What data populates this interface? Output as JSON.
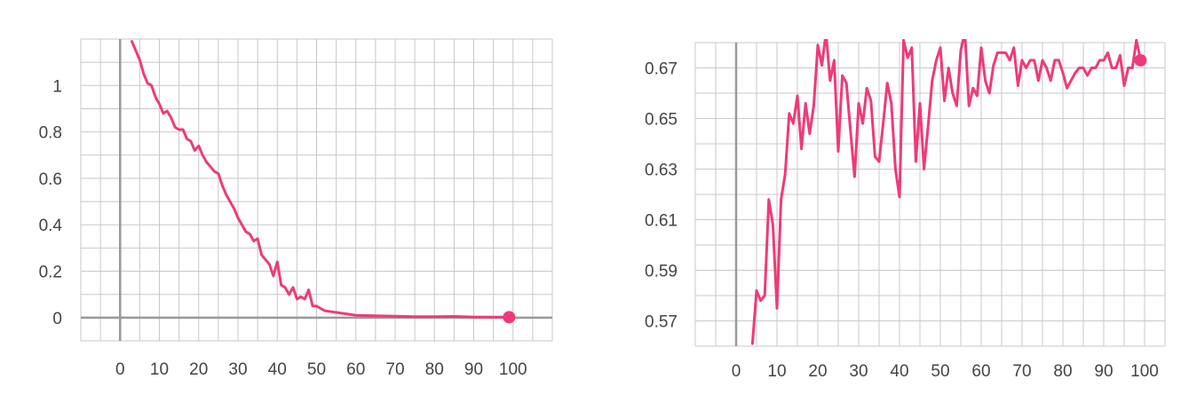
{
  "colors": {
    "series": "#ee3a7b",
    "grid": "#c8c8c8",
    "axis": "#999999",
    "text": "#444444"
  },
  "chart_data": [
    {
      "type": "line",
      "title": "",
      "xlabel": "",
      "ylabel": "",
      "xlim": [
        -10,
        110
      ],
      "ylim": [
        -0.1,
        1.2
      ],
      "grid": true,
      "xticks": [
        0,
        10,
        20,
        30,
        40,
        50,
        60,
        70,
        80,
        90,
        100
      ],
      "xtick_labels": [
        "0",
        "10",
        "20",
        "30",
        "40",
        "50",
        "60",
        "70",
        "80",
        "90",
        "100"
      ],
      "yticks": [
        0,
        0.2,
        0.4,
        0.6,
        0.8,
        1
      ],
      "ytick_labels": [
        "0",
        "0.2",
        "0.4",
        "0.6",
        "0.8",
        "1"
      ],
      "series": [
        {
          "x": [
            3,
            4,
            5,
            6,
            7,
            8,
            9,
            10,
            11,
            12,
            13,
            14,
            15,
            16,
            17,
            18,
            19,
            20,
            21,
            22,
            23,
            24,
            25,
            26,
            27,
            28,
            29,
            30,
            31,
            32,
            33,
            34,
            35,
            36,
            37,
            38,
            39,
            40,
            41,
            42,
            43,
            44,
            45,
            46,
            47,
            48,
            49,
            50,
            52,
            54,
            56,
            58,
            60,
            65,
            70,
            75,
            80,
            85,
            90,
            95,
            99
          ],
          "y": [
            1.19,
            1.15,
            1.11,
            1.05,
            1.01,
            1.0,
            0.95,
            0.92,
            0.88,
            0.89,
            0.86,
            0.82,
            0.81,
            0.81,
            0.77,
            0.76,
            0.72,
            0.74,
            0.7,
            0.67,
            0.65,
            0.63,
            0.62,
            0.57,
            0.53,
            0.5,
            0.47,
            0.43,
            0.4,
            0.37,
            0.36,
            0.33,
            0.34,
            0.27,
            0.25,
            0.23,
            0.18,
            0.24,
            0.14,
            0.13,
            0.1,
            0.13,
            0.08,
            0.09,
            0.08,
            0.12,
            0.05,
            0.05,
            0.03,
            0.025,
            0.02,
            0.015,
            0.01,
            0.008,
            0.006,
            0.004,
            0.004,
            0.005,
            0.003,
            0.002,
            0.002
          ]
        }
      ]
    },
    {
      "type": "line",
      "title": "",
      "xlabel": "",
      "ylabel": "",
      "xlim": [
        -10,
        105
      ],
      "ylim": [
        0.56,
        0.68
      ],
      "grid": true,
      "xticks": [
        0,
        10,
        20,
        30,
        40,
        50,
        60,
        70,
        80,
        90,
        100
      ],
      "xtick_labels": [
        "0",
        "10",
        "20",
        "30",
        "40",
        "50",
        "60",
        "70",
        "80",
        "90",
        "100"
      ],
      "yticks": [
        0.57,
        0.59,
        0.61,
        0.63,
        0.65,
        0.67
      ],
      "ytick_labels": [
        "0.57",
        "0.59",
        "0.61",
        "0.63",
        "0.65",
        "0.67"
      ],
      "series": [
        {
          "x": [
            4,
            5,
            6,
            7,
            8,
            9,
            10,
            11,
            12,
            13,
            14,
            15,
            16,
            17,
            18,
            19,
            20,
            21,
            22,
            23,
            24,
            25,
            26,
            27,
            28,
            29,
            30,
            31,
            32,
            33,
            34,
            35,
            36,
            37,
            38,
            39,
            40,
            41,
            42,
            43,
            44,
            45,
            46,
            47,
            48,
            49,
            50,
            51,
            52,
            53,
            54,
            55,
            56,
            57,
            58,
            59,
            60,
            61,
            62,
            63,
            64,
            65,
            66,
            67,
            68,
            69,
            70,
            71,
            72,
            73,
            74,
            75,
            76,
            77,
            78,
            79,
            80,
            81,
            82,
            83,
            84,
            85,
            86,
            87,
            88,
            89,
            90,
            91,
            92,
            93,
            94,
            95,
            96,
            97,
            98,
            99
          ],
          "y": [
            0.561,
            0.582,
            0.578,
            0.58,
            0.618,
            0.608,
            0.575,
            0.618,
            0.628,
            0.652,
            0.648,
            0.659,
            0.638,
            0.656,
            0.644,
            0.655,
            0.679,
            0.671,
            0.684,
            0.665,
            0.673,
            0.637,
            0.667,
            0.664,
            0.645,
            0.627,
            0.656,
            0.648,
            0.662,
            0.657,
            0.635,
            0.633,
            0.648,
            0.664,
            0.656,
            0.63,
            0.619,
            0.681,
            0.674,
            0.678,
            0.633,
            0.656,
            0.63,
            0.647,
            0.665,
            0.673,
            0.678,
            0.657,
            0.67,
            0.66,
            0.655,
            0.677,
            0.684,
            0.655,
            0.662,
            0.659,
            0.678,
            0.665,
            0.66,
            0.671,
            0.676,
            0.676,
            0.676,
            0.673,
            0.678,
            0.663,
            0.673,
            0.67,
            0.673,
            0.673,
            0.665,
            0.673,
            0.67,
            0.665,
            0.673,
            0.673,
            0.668,
            0.662,
            0.665,
            0.668,
            0.67,
            0.67,
            0.667,
            0.67,
            0.67,
            0.673,
            0.673,
            0.676,
            0.67,
            0.67,
            0.675,
            0.663,
            0.67,
            0.67,
            0.681,
            0.673
          ]
        }
      ]
    }
  ]
}
